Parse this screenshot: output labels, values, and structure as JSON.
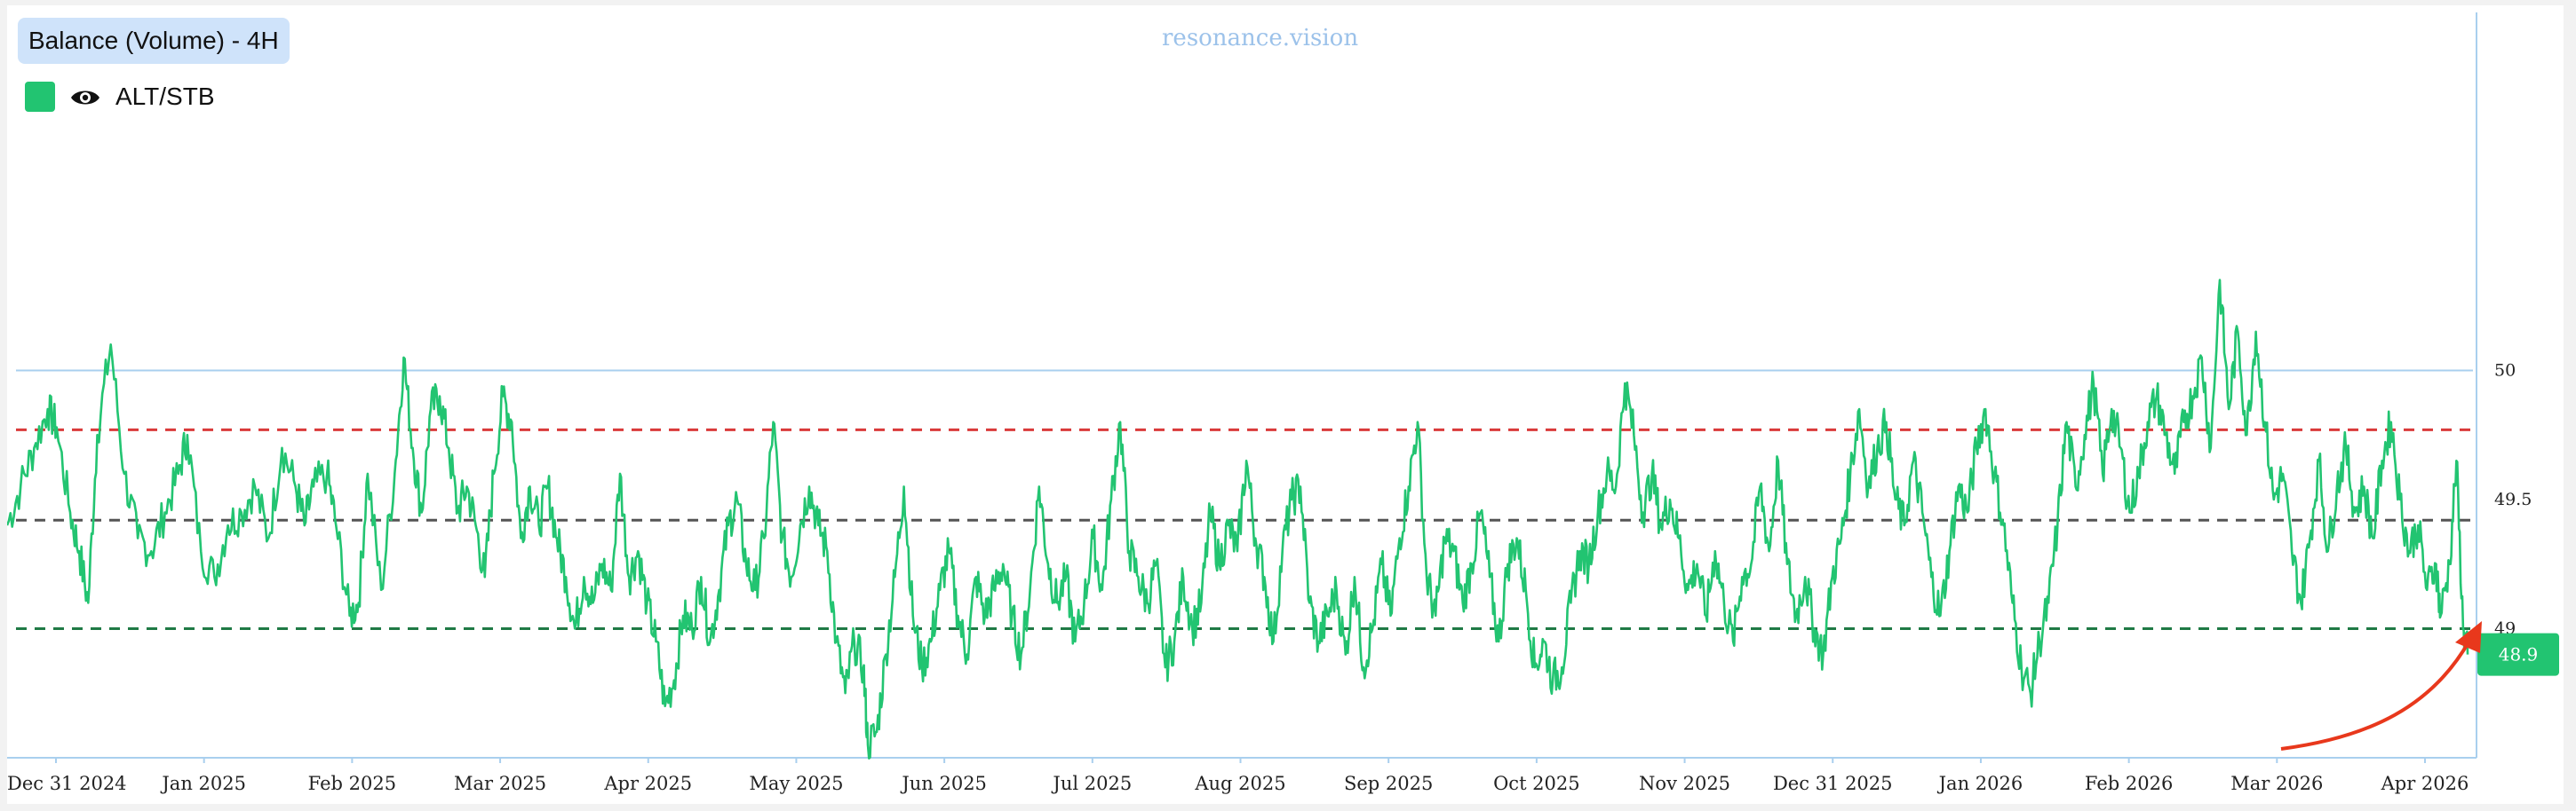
{
  "header": {
    "title": "Balance (Volume) - 4H",
    "watermark": "resonance.vision"
  },
  "legend": {
    "series_name": "ALT/STB",
    "color": "#22c471",
    "icon": "eye-icon"
  },
  "chart_data": {
    "type": "line",
    "title": "Balance (Volume) - 4H",
    "xlabel": "",
    "ylabel": "",
    "ylim": [
      48.5,
      51.4
    ],
    "y_ticks": [
      49,
      49.5,
      50
    ],
    "x_ticks": [
      "Dec 31 2024",
      "Jan 2025",
      "Feb 2025",
      "Mar 2025",
      "Apr 2025",
      "May 2025",
      "Jun 2025",
      "Jul 2025",
      "Aug 2025",
      "Sep 2025",
      "Oct 2025",
      "Nov 2025",
      "Dec 31 2025",
      "Jan 2026",
      "Feb 2026",
      "Mar 2026",
      "Apr 2026"
    ],
    "series": [
      {
        "name": "ALT/STB",
        "color": "#22c471",
        "anchors": [
          [
            0.0,
            49.4
          ],
          [
            0.3,
            49.55
          ],
          [
            0.6,
            49.7
          ],
          [
            0.9,
            49.85
          ],
          [
            1.1,
            49.78
          ],
          [
            1.4,
            49.45
          ],
          [
            1.6,
            49.3
          ],
          [
            1.8,
            49.1
          ],
          [
            2.0,
            49.75
          ],
          [
            2.3,
            50.1
          ],
          [
            2.6,
            49.6
          ],
          [
            2.9,
            49.35
          ],
          [
            3.2,
            49.3
          ],
          [
            3.5,
            49.45
          ],
          [
            3.8,
            49.6
          ],
          [
            4.0,
            49.75
          ],
          [
            4.3,
            49.3
          ],
          [
            4.6,
            49.2
          ],
          [
            4.9,
            49.4
          ],
          [
            5.2,
            49.45
          ],
          [
            5.5,
            49.55
          ],
          [
            5.8,
            49.35
          ],
          [
            6.1,
            49.7
          ],
          [
            6.4,
            49.55
          ],
          [
            6.6,
            49.4
          ],
          [
            6.8,
            49.55
          ],
          [
            7.1,
            49.6
          ],
          [
            7.3,
            49.4
          ],
          [
            7.6,
            49.05
          ],
          [
            7.8,
            49.1
          ],
          [
            8.0,
            49.6
          ],
          [
            8.3,
            49.15
          ],
          [
            8.6,
            49.6
          ],
          [
            8.8,
            50.05
          ],
          [
            9.0,
            49.7
          ],
          [
            9.2,
            49.45
          ],
          [
            9.4,
            49.85
          ],
          [
            9.6,
            49.9
          ],
          [
            9.8,
            49.7
          ],
          [
            10.0,
            49.45
          ],
          [
            10.2,
            49.55
          ],
          [
            10.4,
            49.4
          ],
          [
            10.6,
            49.2
          ],
          [
            10.8,
            49.6
          ],
          [
            11.0,
            49.9
          ],
          [
            11.2,
            49.8
          ],
          [
            11.4,
            49.35
          ],
          [
            11.6,
            49.55
          ],
          [
            11.8,
            49.4
          ],
          [
            12.0,
            49.55
          ],
          [
            12.2,
            49.35
          ],
          [
            12.4,
            49.2
          ],
          [
            12.6,
            49.0
          ],
          [
            12.8,
            49.2
          ],
          [
            13.0,
            49.1
          ],
          [
            13.2,
            49.25
          ],
          [
            13.4,
            49.15
          ],
          [
            13.6,
            49.6
          ],
          [
            13.8,
            49.2
          ],
          [
            14.0,
            49.3
          ],
          [
            14.2,
            49.1
          ],
          [
            14.4,
            48.95
          ],
          [
            14.6,
            48.7
          ],
          [
            14.8,
            48.8
          ],
          [
            15.0,
            49.05
          ],
          [
            15.2,
            49.0
          ],
          [
            15.4,
            49.2
          ],
          [
            15.6,
            48.95
          ],
          [
            15.8,
            49.15
          ],
          [
            16.0,
            49.4
          ],
          [
            16.2,
            49.5
          ],
          [
            16.4,
            49.25
          ],
          [
            16.6,
            49.15
          ],
          [
            16.8,
            49.35
          ],
          [
            17.0,
            49.8
          ],
          [
            17.2,
            49.35
          ],
          [
            17.4,
            49.2
          ],
          [
            17.6,
            49.4
          ],
          [
            17.8,
            49.55
          ],
          [
            18.0,
            49.4
          ],
          [
            18.2,
            49.3
          ],
          [
            18.4,
            48.95
          ],
          [
            18.6,
            48.75
          ],
          [
            18.8,
            48.95
          ],
          [
            19.0,
            48.85
          ],
          [
            19.1,
            48.55
          ],
          [
            19.3,
            48.6
          ],
          [
            19.5,
            48.9
          ],
          [
            19.7,
            49.2
          ],
          [
            19.9,
            49.55
          ],
          [
            20.1,
            49.05
          ],
          [
            20.3,
            48.85
          ],
          [
            20.5,
            48.95
          ],
          [
            20.7,
            49.15
          ],
          [
            20.9,
            49.3
          ],
          [
            21.1,
            49.05
          ],
          [
            21.3,
            48.9
          ],
          [
            21.5,
            49.2
          ],
          [
            21.7,
            49.05
          ],
          [
            21.9,
            49.15
          ],
          [
            22.1,
            49.25
          ],
          [
            22.3,
            49.05
          ],
          [
            22.5,
            48.9
          ],
          [
            22.7,
            49.15
          ],
          [
            22.9,
            49.55
          ],
          [
            23.1,
            49.25
          ],
          [
            23.3,
            49.1
          ],
          [
            23.5,
            49.2
          ],
          [
            23.7,
            48.95
          ],
          [
            23.9,
            49.1
          ],
          [
            24.1,
            49.35
          ],
          [
            24.3,
            49.15
          ],
          [
            24.5,
            49.5
          ],
          [
            24.7,
            49.8
          ],
          [
            24.9,
            49.3
          ],
          [
            25.1,
            49.2
          ],
          [
            25.3,
            49.1
          ],
          [
            25.5,
            49.25
          ],
          [
            25.7,
            48.85
          ],
          [
            25.9,
            48.95
          ],
          [
            26.1,
            49.2
          ],
          [
            26.3,
            49.0
          ],
          [
            26.5,
            49.1
          ],
          [
            26.7,
            49.45
          ],
          [
            26.9,
            49.25
          ],
          [
            27.1,
            49.4
          ],
          [
            27.3,
            49.3
          ],
          [
            27.5,
            49.65
          ],
          [
            27.7,
            49.35
          ],
          [
            27.9,
            49.2
          ],
          [
            28.1,
            48.95
          ],
          [
            28.3,
            49.3
          ],
          [
            28.5,
            49.5
          ],
          [
            28.7,
            49.55
          ],
          [
            28.9,
            49.1
          ],
          [
            29.1,
            48.95
          ],
          [
            29.3,
            49.05
          ],
          [
            29.5,
            49.15
          ],
          [
            29.7,
            48.9
          ],
          [
            29.9,
            49.2
          ],
          [
            30.1,
            48.85
          ],
          [
            30.3,
            49.0
          ],
          [
            30.5,
            49.25
          ],
          [
            30.7,
            49.05
          ],
          [
            30.9,
            49.35
          ],
          [
            31.1,
            49.55
          ],
          [
            31.3,
            49.8
          ],
          [
            31.5,
            49.2
          ],
          [
            31.7,
            49.05
          ],
          [
            31.9,
            49.35
          ],
          [
            32.1,
            49.3
          ],
          [
            32.3,
            49.1
          ],
          [
            32.5,
            49.25
          ],
          [
            32.7,
            49.45
          ],
          [
            32.9,
            49.2
          ],
          [
            33.1,
            48.95
          ],
          [
            33.3,
            49.25
          ],
          [
            33.5,
            49.35
          ],
          [
            33.7,
            49.15
          ],
          [
            33.9,
            48.85
          ],
          [
            34.1,
            48.95
          ],
          [
            34.3,
            48.8
          ],
          [
            34.5,
            48.85
          ],
          [
            34.7,
            49.1
          ],
          [
            34.9,
            49.3
          ],
          [
            35.1,
            49.25
          ],
          [
            35.3,
            49.45
          ],
          [
            35.5,
            49.6
          ],
          [
            35.7,
            49.55
          ],
          [
            35.9,
            49.95
          ],
          [
            36.1,
            49.75
          ],
          [
            36.3,
            49.45
          ],
          [
            36.5,
            49.6
          ],
          [
            36.7,
            49.4
          ],
          [
            36.9,
            49.5
          ],
          [
            37.1,
            49.35
          ],
          [
            37.3,
            49.15
          ],
          [
            37.5,
            49.25
          ],
          [
            37.7,
            49.05
          ],
          [
            37.9,
            49.3
          ],
          [
            38.1,
            49.1
          ],
          [
            38.3,
            48.95
          ],
          [
            38.5,
            49.2
          ],
          [
            38.7,
            49.25
          ],
          [
            38.9,
            49.55
          ],
          [
            39.1,
            49.3
          ],
          [
            39.3,
            49.65
          ],
          [
            39.5,
            49.25
          ],
          [
            39.7,
            49.05
          ],
          [
            39.9,
            49.2
          ],
          [
            40.1,
            49.0
          ],
          [
            40.3,
            48.9
          ],
          [
            40.5,
            49.2
          ],
          [
            40.7,
            49.35
          ],
          [
            40.9,
            49.6
          ],
          [
            41.1,
            49.85
          ],
          [
            41.3,
            49.55
          ],
          [
            41.5,
            49.7
          ],
          [
            41.7,
            49.8
          ],
          [
            41.9,
            49.5
          ],
          [
            42.1,
            49.4
          ],
          [
            42.3,
            49.65
          ],
          [
            42.5,
            49.45
          ],
          [
            42.7,
            49.2
          ],
          [
            42.9,
            49.05
          ],
          [
            43.1,
            49.3
          ],
          [
            43.3,
            49.55
          ],
          [
            43.5,
            49.45
          ],
          [
            43.7,
            49.7
          ],
          [
            43.9,
            49.85
          ],
          [
            44.1,
            49.6
          ],
          [
            44.3,
            49.4
          ],
          [
            44.5,
            49.1
          ],
          [
            44.7,
            48.85
          ],
          [
            44.9,
            48.75
          ],
          [
            45.1,
            48.95
          ],
          [
            45.3,
            49.1
          ],
          [
            45.5,
            49.4
          ],
          [
            45.7,
            49.8
          ],
          [
            45.9,
            49.55
          ],
          [
            46.1,
            49.75
          ],
          [
            46.3,
            49.95
          ],
          [
            46.5,
            49.6
          ],
          [
            46.7,
            49.85
          ],
          [
            46.9,
            49.7
          ],
          [
            47.1,
            49.45
          ],
          [
            47.3,
            49.6
          ],
          [
            47.5,
            49.8
          ],
          [
            47.7,
            49.9
          ],
          [
            47.9,
            49.75
          ],
          [
            48.1,
            49.6
          ],
          [
            48.3,
            49.8
          ],
          [
            48.5,
            49.9
          ],
          [
            48.7,
            50.05
          ],
          [
            48.9,
            49.7
          ],
          [
            49.1,
            50.35
          ],
          [
            49.3,
            49.85
          ],
          [
            49.5,
            50.15
          ],
          [
            49.7,
            49.75
          ],
          [
            49.9,
            50.15
          ],
          [
            50.1,
            49.8
          ],
          [
            50.3,
            49.5
          ],
          [
            50.5,
            49.6
          ],
          [
            50.7,
            49.3
          ],
          [
            50.9,
            49.1
          ],
          [
            51.1,
            49.35
          ],
          [
            51.3,
            49.65
          ],
          [
            51.5,
            49.3
          ],
          [
            51.7,
            49.55
          ],
          [
            51.9,
            49.7
          ],
          [
            52.1,
            49.45
          ],
          [
            52.3,
            49.55
          ],
          [
            52.5,
            49.35
          ],
          [
            52.7,
            49.65
          ],
          [
            52.9,
            49.8
          ],
          [
            53.1,
            49.5
          ],
          [
            53.3,
            49.3
          ],
          [
            53.5,
            49.4
          ],
          [
            53.7,
            49.15
          ],
          [
            53.9,
            49.25
          ],
          [
            54.0,
            49.05
          ],
          [
            54.2,
            49.25
          ],
          [
            54.35,
            49.65
          ],
          [
            54.5,
            49.0
          ],
          [
            54.6,
            48.9
          ]
        ]
      }
    ],
    "reference_lines": [
      {
        "value": 50.0,
        "color": "#a9cfee",
        "style": "solid"
      },
      {
        "value": 49.77,
        "color": "#d93a3a",
        "style": "dashed"
      },
      {
        "value": 49.42,
        "color": "#555555",
        "style": "dashed"
      },
      {
        "value": 49.0,
        "color": "#1f7a45",
        "style": "dashed"
      }
    ],
    "last_value": 48.9,
    "last_value_label": "48.9",
    "grid": false,
    "legend_position": "top-left"
  }
}
